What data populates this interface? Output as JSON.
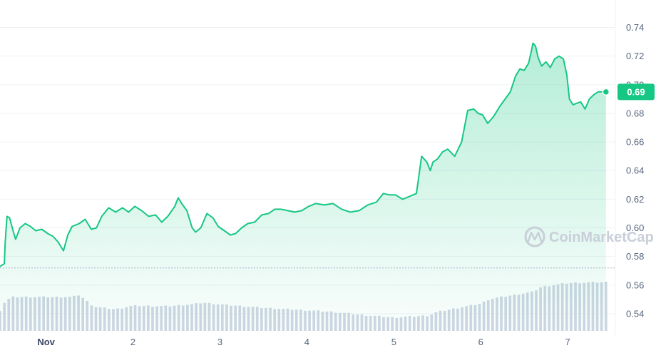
{
  "watermark": {
    "text": "CoinMarketCap",
    "icon": "coinmarketcap-logo-icon"
  },
  "current_price_label": "0.69",
  "colors": {
    "line": "#16c784",
    "area_top": "#16c784",
    "volume": "#cfd6e4",
    "grid": "#eff2f5",
    "baseline": "#a6b0c3",
    "axis_text": "#58667e",
    "price_badge": "#16c784"
  },
  "chart_data": {
    "type": "line",
    "title": "",
    "xlabel": "",
    "ylabel": "",
    "x_ticks": [
      {
        "label": "Nov",
        "day": 1,
        "bold": true
      },
      {
        "label": "2",
        "day": 2,
        "bold": false
      },
      {
        "label": "3",
        "day": 3,
        "bold": false
      },
      {
        "label": "4",
        "day": 4,
        "bold": false
      },
      {
        "label": "5",
        "day": 5,
        "bold": false
      },
      {
        "label": "6",
        "day": 6,
        "bold": false
      },
      {
        "label": "7",
        "day": 7,
        "bold": false
      }
    ],
    "y_ticks": [
      "0.74",
      "0.72",
      "0.70",
      "0.68",
      "0.66",
      "0.64",
      "0.62",
      "0.60",
      "0.58",
      "0.56",
      "0.54"
    ],
    "ylim": [
      0.528,
      0.7455
    ],
    "xlim": [
      0.47,
      7.54
    ],
    "grid": true,
    "reference_line_value": 0.572,
    "series": [
      {
        "x": [
          0.47,
          0.52,
          0.53,
          0.55,
          0.58,
          0.62,
          0.65,
          0.7,
          0.76,
          0.82,
          0.88,
          0.95,
          1.02,
          1.08,
          1.14,
          1.2,
          1.25,
          1.3,
          1.38,
          1.45,
          1.52,
          1.58,
          1.64,
          1.72,
          1.8,
          1.88,
          1.95,
          2.02,
          2.1,
          2.18,
          2.26,
          2.33,
          2.4,
          2.48,
          2.52,
          2.56,
          2.62,
          2.68,
          2.72,
          2.78,
          2.85,
          2.92,
          2.98,
          3.05,
          3.12,
          3.18,
          3.25,
          3.32,
          3.4,
          3.48,
          3.56,
          3.63,
          3.7,
          3.78,
          3.86,
          3.94,
          4.02,
          4.1,
          4.2,
          4.3,
          4.4,
          4.5,
          4.6,
          4.7,
          4.8,
          4.88,
          4.95,
          5.02,
          5.1,
          5.18,
          5.26,
          5.32,
          5.38,
          5.42,
          5.45,
          5.5,
          5.56,
          5.62,
          5.7,
          5.78,
          5.85,
          5.92,
          5.97,
          6.02,
          6.08,
          6.15,
          6.22,
          6.28,
          6.34,
          6.4,
          6.45,
          6.5,
          6.55,
          6.58,
          6.6,
          6.63,
          6.66,
          6.7,
          6.75,
          6.8,
          6.85,
          6.9,
          6.95,
          6.99,
          7.02,
          7.06,
          7.1,
          7.15,
          7.2,
          7.25,
          7.3,
          7.35,
          7.4,
          7.44
        ],
        "y": [
          0.573,
          0.575,
          0.59,
          0.608,
          0.607,
          0.598,
          0.592,
          0.6,
          0.603,
          0.601,
          0.598,
          0.599,
          0.596,
          0.594,
          0.59,
          0.584,
          0.595,
          0.601,
          0.603,
          0.606,
          0.599,
          0.6,
          0.608,
          0.614,
          0.611,
          0.614,
          0.611,
          0.615,
          0.612,
          0.608,
          0.609,
          0.604,
          0.608,
          0.615,
          0.621,
          0.617,
          0.612,
          0.6,
          0.597,
          0.6,
          0.61,
          0.607,
          0.601,
          0.598,
          0.595,
          0.596,
          0.6,
          0.603,
          0.604,
          0.609,
          0.61,
          0.613,
          0.613,
          0.612,
          0.611,
          0.612,
          0.615,
          0.617,
          0.616,
          0.617,
          0.613,
          0.611,
          0.612,
          0.616,
          0.618,
          0.624,
          0.623,
          0.623,
          0.62,
          0.622,
          0.624,
          0.65,
          0.646,
          0.64,
          0.646,
          0.648,
          0.653,
          0.655,
          0.65,
          0.66,
          0.682,
          0.683,
          0.68,
          0.679,
          0.673,
          0.678,
          0.685,
          0.69,
          0.695,
          0.706,
          0.711,
          0.71,
          0.715,
          0.723,
          0.729,
          0.727,
          0.719,
          0.713,
          0.716,
          0.712,
          0.718,
          0.72,
          0.718,
          0.707,
          0.69,
          0.686,
          0.687,
          0.688,
          0.683,
          0.69,
          0.693,
          0.695,
          0.695,
          0.695
        ]
      }
    ],
    "volume": {
      "x_start": 0.47,
      "x_end": 7.44,
      "bar_count": 140,
      "anchors": [
        [
          0.47,
          0.4
        ],
        [
          0.52,
          0.55
        ],
        [
          0.6,
          0.66
        ],
        [
          1.0,
          0.66
        ],
        [
          1.3,
          0.66
        ],
        [
          1.38,
          0.7
        ],
        [
          1.55,
          0.47
        ],
        [
          1.8,
          0.42
        ],
        [
          2.0,
          0.49
        ],
        [
          2.4,
          0.48
        ],
        [
          2.7,
          0.52
        ],
        [
          2.8,
          0.55
        ],
        [
          3.1,
          0.5
        ],
        [
          3.5,
          0.45
        ],
        [
          3.9,
          0.41
        ],
        [
          4.3,
          0.37
        ],
        [
          4.7,
          0.3
        ],
        [
          5.0,
          0.26
        ],
        [
          5.4,
          0.3
        ],
        [
          5.5,
          0.37
        ],
        [
          6.0,
          0.53
        ],
        [
          6.1,
          0.62
        ],
        [
          6.6,
          0.76
        ],
        [
          6.7,
          0.86
        ],
        [
          7.0,
          0.93
        ],
        [
          7.44,
          0.95
        ]
      ]
    }
  }
}
